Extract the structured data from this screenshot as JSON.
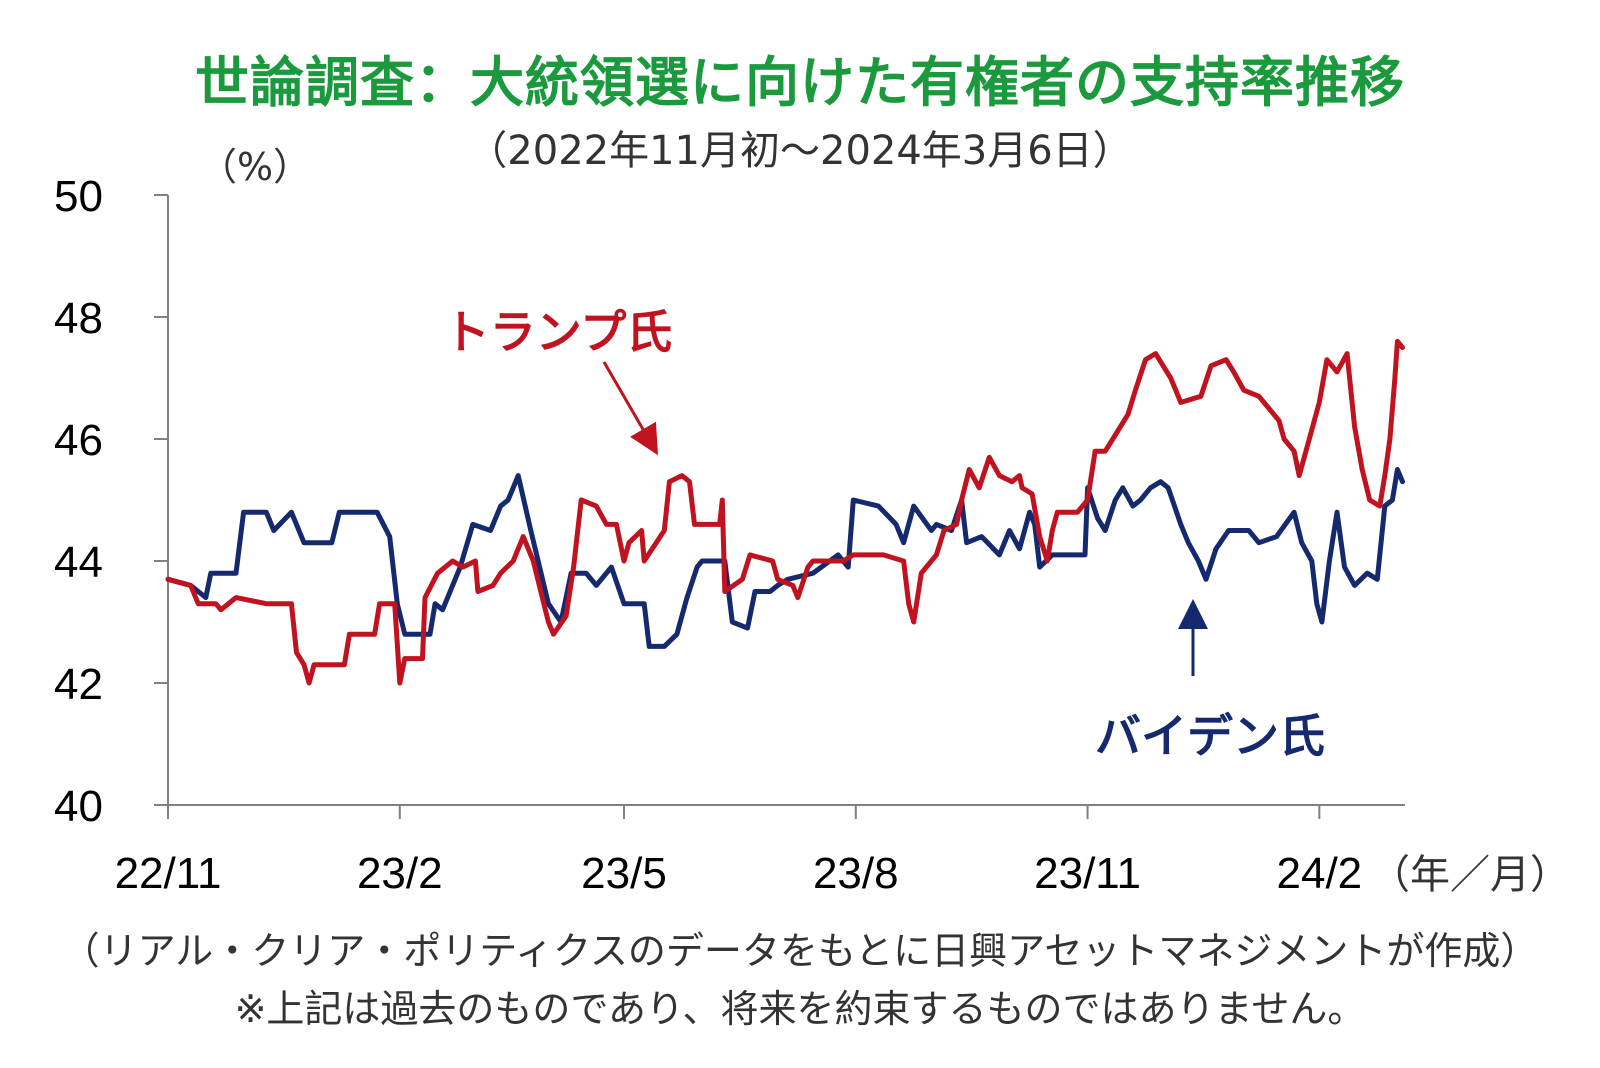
{
  "title": "世論調査：大統領選に向けた有権者の支持率推移",
  "subtitle": "（2022年11月初～2024年3月6日）",
  "footnote1": "（リアル・クリア・ポリティクスのデータをもとに日興アセットマネジメントが作成）",
  "footnote2": "※上記は過去のものであり、将来を約束するものではありません。",
  "colors": {
    "trump": "#c0121f",
    "biden": "#152a6e",
    "title": "#1a9a3c",
    "axis": "#808080"
  },
  "chart_data": {
    "type": "line",
    "y_unit_label": "（%）",
    "x_unit_label": "（年／月）",
    "ylim": [
      40,
      50
    ],
    "yticks": [
      "40",
      "42",
      "44",
      "46",
      "48",
      "50"
    ],
    "xlim": [
      "2022-11-01",
      "2024-03-06"
    ],
    "xticks": [
      {
        "date": "2022-11-01",
        "label": "22/11"
      },
      {
        "date": "2023-02-01",
        "label": "23/2"
      },
      {
        "date": "2023-05-01",
        "label": "23/5"
      },
      {
        "date": "2023-08-01",
        "label": "23/8"
      },
      {
        "date": "2023-11-01",
        "label": "23/11"
      },
      {
        "date": "2024-02-01",
        "label": "24/2"
      }
    ],
    "grid": false,
    "annotations": [
      {
        "series": "trump",
        "text": "トランプ氏"
      },
      {
        "series": "biden",
        "text": "バイデン氏"
      }
    ],
    "series": [
      {
        "key": "trump",
        "name": "トランプ氏",
        "color": "#c0121f",
        "points": [
          [
            "2022-11-01",
            43.7
          ],
          [
            "2022-11-10",
            43.6
          ],
          [
            "2022-11-13",
            43.3
          ],
          [
            "2022-11-20",
            43.3
          ],
          [
            "2022-11-22",
            43.2
          ],
          [
            "2022-11-28",
            43.4
          ],
          [
            "2022-12-10",
            43.3
          ],
          [
            "2022-12-20",
            43.3
          ],
          [
            "2022-12-22",
            42.5
          ],
          [
            "2022-12-25",
            42.3
          ],
          [
            "2022-12-27",
            42.0
          ],
          [
            "2022-12-29",
            42.3
          ],
          [
            "2023-01-10",
            42.3
          ],
          [
            "2023-01-12",
            42.8
          ],
          [
            "2023-01-22",
            42.8
          ],
          [
            "2023-01-24",
            43.3
          ],
          [
            "2023-01-29",
            43.3
          ],
          [
            "2023-01-30",
            43.3
          ],
          [
            "2023-02-01",
            42.0
          ],
          [
            "2023-02-03",
            42.4
          ],
          [
            "2023-02-10",
            42.4
          ],
          [
            "2023-02-11",
            43.4
          ],
          [
            "2023-02-16",
            43.8
          ],
          [
            "2023-02-22",
            44.0
          ],
          [
            "2023-02-26",
            43.9
          ],
          [
            "2023-03-03",
            44.0
          ],
          [
            "2023-03-04",
            43.5
          ],
          [
            "2023-03-10",
            43.6
          ],
          [
            "2023-03-13",
            43.8
          ],
          [
            "2023-03-18",
            44.0
          ],
          [
            "2023-03-22",
            44.4
          ],
          [
            "2023-03-26",
            44.0
          ],
          [
            "2023-04-01",
            43.0
          ],
          [
            "2023-04-03",
            42.8
          ],
          [
            "2023-04-08",
            43.1
          ],
          [
            "2023-04-11",
            43.9
          ],
          [
            "2023-04-14",
            45.0
          ],
          [
            "2023-04-20",
            44.9
          ],
          [
            "2023-04-24",
            44.6
          ],
          [
            "2023-04-28",
            44.6
          ],
          [
            "2023-05-01",
            44.0
          ],
          [
            "2023-05-03",
            44.3
          ],
          [
            "2023-05-08",
            44.5
          ],
          [
            "2023-05-09",
            44.0
          ],
          [
            "2023-05-17",
            44.5
          ],
          [
            "2023-05-19",
            45.3
          ],
          [
            "2023-05-24",
            45.4
          ],
          [
            "2023-05-27",
            45.3
          ],
          [
            "2023-05-29",
            44.6
          ],
          [
            "2023-06-08",
            44.6
          ],
          [
            "2023-06-09",
            45.0
          ],
          [
            "2023-06-10",
            43.5
          ],
          [
            "2023-06-17",
            43.7
          ],
          [
            "2023-06-20",
            44.1
          ],
          [
            "2023-06-29",
            44.0
          ],
          [
            "2023-07-01",
            43.7
          ],
          [
            "2023-07-07",
            43.6
          ],
          [
            "2023-07-09",
            43.4
          ],
          [
            "2023-07-13",
            43.9
          ],
          [
            "2023-07-15",
            44.0
          ],
          [
            "2023-07-27",
            44.0
          ],
          [
            "2023-07-31",
            44.1
          ],
          [
            "2023-08-12",
            44.1
          ],
          [
            "2023-08-20",
            44.0
          ],
          [
            "2023-08-22",
            43.3
          ],
          [
            "2023-08-24",
            43.0
          ],
          [
            "2023-08-27",
            43.8
          ],
          [
            "2023-09-02",
            44.1
          ],
          [
            "2023-09-05",
            44.5
          ],
          [
            "2023-09-10",
            44.6
          ],
          [
            "2023-09-12",
            45.0
          ],
          [
            "2023-09-15",
            45.5
          ],
          [
            "2023-09-19",
            45.2
          ],
          [
            "2023-09-23",
            45.7
          ],
          [
            "2023-09-27",
            45.4
          ],
          [
            "2023-10-02",
            45.3
          ],
          [
            "2023-10-05",
            45.4
          ],
          [
            "2023-10-06",
            45.2
          ],
          [
            "2023-10-10",
            45.1
          ],
          [
            "2023-10-13",
            44.4
          ],
          [
            "2023-10-16",
            44.0
          ],
          [
            "2023-10-18",
            44.5
          ],
          [
            "2023-10-20",
            44.8
          ],
          [
            "2023-10-28",
            44.8
          ],
          [
            "2023-11-01",
            45.0
          ],
          [
            "2023-11-04",
            45.8
          ],
          [
            "2023-11-08",
            45.8
          ],
          [
            "2023-11-11",
            46.0
          ],
          [
            "2023-11-17",
            46.4
          ],
          [
            "2023-11-20",
            46.8
          ],
          [
            "2023-11-24",
            47.3
          ],
          [
            "2023-11-28",
            47.4
          ],
          [
            "2023-12-01",
            47.2
          ],
          [
            "2023-12-04",
            47.0
          ],
          [
            "2023-12-08",
            46.6
          ],
          [
            "2023-12-16",
            46.7
          ],
          [
            "2023-12-20",
            47.2
          ],
          [
            "2023-12-26",
            47.3
          ],
          [
            "2023-12-29",
            47.1
          ],
          [
            "2024-01-02",
            46.8
          ],
          [
            "2024-01-08",
            46.7
          ],
          [
            "2024-01-12",
            46.5
          ],
          [
            "2024-01-16",
            46.3
          ],
          [
            "2024-01-18",
            46.0
          ],
          [
            "2024-01-22",
            45.8
          ],
          [
            "2024-01-24",
            45.4
          ],
          [
            "2024-01-28",
            46.0
          ],
          [
            "2024-02-01",
            46.6
          ],
          [
            "2024-02-04",
            47.3
          ],
          [
            "2024-02-08",
            47.1
          ],
          [
            "2024-02-12",
            47.4
          ],
          [
            "2024-02-15",
            46.2
          ],
          [
            "2024-02-18",
            45.5
          ],
          [
            "2024-02-21",
            45.0
          ],
          [
            "2024-02-25",
            44.9
          ],
          [
            "2024-02-27",
            45.4
          ],
          [
            "2024-02-29",
            46.0
          ],
          [
            "2024-03-02",
            47.0
          ],
          [
            "2024-03-03",
            47.6
          ],
          [
            "2024-03-05",
            47.5
          ]
        ]
      },
      {
        "key": "biden",
        "name": "バイデン氏",
        "color": "#152a6e",
        "points": [
          [
            "2022-11-01",
            43.7
          ],
          [
            "2022-11-10",
            43.6
          ],
          [
            "2022-11-16",
            43.4
          ],
          [
            "2022-11-18",
            43.8
          ],
          [
            "2022-11-28",
            43.8
          ],
          [
            "2022-12-01",
            44.8
          ],
          [
            "2022-12-10",
            44.8
          ],
          [
            "2022-12-13",
            44.5
          ],
          [
            "2022-12-20",
            44.8
          ],
          [
            "2022-12-25",
            44.3
          ],
          [
            "2023-01-05",
            44.3
          ],
          [
            "2023-01-08",
            44.8
          ],
          [
            "2023-01-23",
            44.8
          ],
          [
            "2023-01-28",
            44.4
          ],
          [
            "2023-01-31",
            43.3
          ],
          [
            "2023-02-03",
            42.8
          ],
          [
            "2023-02-13",
            42.8
          ],
          [
            "2023-02-15",
            43.3
          ],
          [
            "2023-02-18",
            43.2
          ],
          [
            "2023-02-25",
            43.9
          ],
          [
            "2023-03-02",
            44.6
          ],
          [
            "2023-03-09",
            44.5
          ],
          [
            "2023-03-13",
            44.9
          ],
          [
            "2023-03-16",
            45.0
          ],
          [
            "2023-03-20",
            45.4
          ],
          [
            "2023-03-25",
            44.5
          ],
          [
            "2023-04-01",
            43.3
          ],
          [
            "2023-04-06",
            43.0
          ],
          [
            "2023-04-10",
            43.8
          ],
          [
            "2023-04-16",
            43.8
          ],
          [
            "2023-04-20",
            43.6
          ],
          [
            "2023-04-26",
            43.9
          ],
          [
            "2023-05-01",
            43.3
          ],
          [
            "2023-05-09",
            43.3
          ],
          [
            "2023-05-11",
            42.6
          ],
          [
            "2023-05-17",
            42.6
          ],
          [
            "2023-05-22",
            42.8
          ],
          [
            "2023-05-26",
            43.4
          ],
          [
            "2023-05-30",
            43.9
          ],
          [
            "2023-06-01",
            44.0
          ],
          [
            "2023-06-10",
            44.0
          ],
          [
            "2023-06-13",
            43.0
          ],
          [
            "2023-06-19",
            42.9
          ],
          [
            "2023-06-22",
            43.5
          ],
          [
            "2023-06-28",
            43.5
          ],
          [
            "2023-07-01",
            43.6
          ],
          [
            "2023-07-05",
            43.7
          ],
          [
            "2023-07-15",
            43.8
          ],
          [
            "2023-07-25",
            44.1
          ],
          [
            "2023-07-29",
            43.9
          ],
          [
            "2023-07-31",
            45.0
          ],
          [
            "2023-08-10",
            44.9
          ],
          [
            "2023-08-17",
            44.6
          ],
          [
            "2023-08-20",
            44.3
          ],
          [
            "2023-08-24",
            44.9
          ],
          [
            "2023-08-31",
            44.5
          ],
          [
            "2023-09-02",
            44.6
          ],
          [
            "2023-09-08",
            44.5
          ],
          [
            "2023-09-12",
            45.0
          ],
          [
            "2023-09-14",
            44.3
          ],
          [
            "2023-09-20",
            44.4
          ],
          [
            "2023-09-27",
            44.1
          ],
          [
            "2023-10-01",
            44.5
          ],
          [
            "2023-10-05",
            44.2
          ],
          [
            "2023-10-09",
            44.8
          ],
          [
            "2023-10-11",
            44.6
          ],
          [
            "2023-10-13",
            43.9
          ],
          [
            "2023-10-18",
            44.1
          ],
          [
            "2023-10-24",
            44.1
          ],
          [
            "2023-10-31",
            44.1
          ],
          [
            "2023-11-01",
            45.2
          ],
          [
            "2023-11-05",
            44.7
          ],
          [
            "2023-11-08",
            44.5
          ],
          [
            "2023-11-12",
            45.0
          ],
          [
            "2023-11-15",
            45.2
          ],
          [
            "2023-11-19",
            44.9
          ],
          [
            "2023-11-22",
            45.0
          ],
          [
            "2023-11-26",
            45.2
          ],
          [
            "2023-11-30",
            45.3
          ],
          [
            "2023-12-03",
            45.2
          ],
          [
            "2023-12-08",
            44.6
          ],
          [
            "2023-12-11",
            44.3
          ],
          [
            "2023-12-15",
            44.0
          ],
          [
            "2023-12-18",
            43.7
          ],
          [
            "2023-12-22",
            44.2
          ],
          [
            "2023-12-27",
            44.5
          ],
          [
            "2024-01-04",
            44.5
          ],
          [
            "2024-01-08",
            44.3
          ],
          [
            "2024-01-15",
            44.4
          ],
          [
            "2024-01-22",
            44.8
          ],
          [
            "2024-01-25",
            44.3
          ],
          [
            "2024-01-29",
            44.0
          ],
          [
            "2024-01-31",
            43.3
          ],
          [
            "2024-02-02",
            43.0
          ],
          [
            "2024-02-05",
            44.0
          ],
          [
            "2024-02-08",
            44.8
          ],
          [
            "2024-02-11",
            43.9
          ],
          [
            "2024-02-15",
            43.6
          ],
          [
            "2024-02-20",
            43.8
          ],
          [
            "2024-02-24",
            43.7
          ],
          [
            "2024-02-27",
            44.9
          ],
          [
            "2024-03-01",
            45.0
          ],
          [
            "2024-03-03",
            45.5
          ],
          [
            "2024-03-05",
            45.3
          ]
        ]
      }
    ]
  }
}
